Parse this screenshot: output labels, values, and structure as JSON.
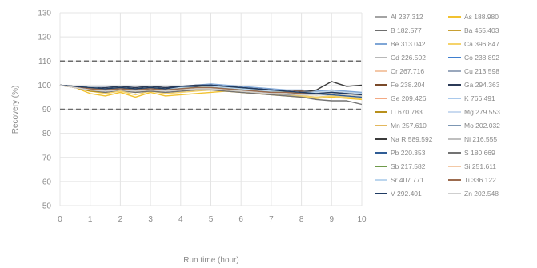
{
  "chart_data": {
    "type": "line",
    "title": "",
    "xlabel": "Run time (hour)",
    "ylabel": "Recovery (%)",
    "xlim": [
      0,
      10
    ],
    "ylim": [
      50,
      130
    ],
    "xticks": [
      "0",
      "1",
      "2",
      "3",
      "4",
      "5",
      "6",
      "7",
      "8",
      "9",
      "10"
    ],
    "yticks": [
      "50",
      "60",
      "70",
      "80",
      "90",
      "100",
      "110",
      "120",
      "130"
    ],
    "grid": true,
    "legend": "right",
    "limit_lines": [
      110,
      90
    ],
    "x": [
      0,
      0.5,
      1,
      1.5,
      2,
      2.5,
      3,
      3.5,
      4,
      4.5,
      5,
      5.5,
      6,
      6.5,
      7,
      7.5,
      8,
      8.5,
      9,
      9.5,
      10
    ],
    "series": [
      {
        "name": "Al 237.312",
        "color": "#a3a3a3",
        "values": [
          100,
          99.5,
          98.5,
          98.0,
          97.5,
          97.0,
          97.5,
          97.0,
          97.5,
          98.0,
          98.5,
          98.0,
          97.5,
          97.0,
          96.5,
          96.0,
          95.5,
          95.0,
          95.5,
          95.0,
          94.5
        ]
      },
      {
        "name": "As 188.980",
        "color": "#f2c230",
        "values": [
          100,
          99.0,
          96.5,
          95.5,
          97.0,
          95.0,
          97.0,
          95.5,
          96.0,
          96.5,
          97.0,
          97.5,
          97.0,
          96.5,
          96.0,
          95.5,
          95.0,
          94.5,
          95.0,
          94.5,
          94.0
        ]
      },
      {
        "name": "B 182.577",
        "color": "#6e6e6e",
        "values": [
          100,
          99.5,
          99.0,
          98.5,
          99.0,
          98.5,
          99.0,
          98.5,
          99.0,
          99.5,
          99.5,
          99.0,
          98.5,
          98.0,
          97.5,
          97.0,
          97.0,
          96.5,
          97.0,
          96.5,
          96.0
        ]
      },
      {
        "name": "Ba 455.403",
        "color": "#c8a033",
        "values": [
          100,
          99.0,
          98.5,
          98.0,
          98.5,
          98.0,
          98.5,
          98.0,
          98.5,
          98.5,
          99.0,
          98.5,
          98.0,
          97.5,
          97.0,
          97.0,
          97.5,
          97.0,
          97.5,
          97.0,
          96.5
        ]
      },
      {
        "name": "Be 313.042",
        "color": "#7fa6d6",
        "values": [
          100,
          99.5,
          99.0,
          99.0,
          99.5,
          99.0,
          99.5,
          99.0,
          99.5,
          100,
          100.5,
          100,
          99.5,
          99.0,
          98.5,
          98.0,
          98.0,
          97.5,
          98.0,
          97.5,
          97.0
        ]
      },
      {
        "name": "Ca 396.847",
        "color": "#f5d36b",
        "values": [
          100,
          99.0,
          97.5,
          96.5,
          97.5,
          96.0,
          97.5,
          96.5,
          97.0,
          97.5,
          98.0,
          97.5,
          97.0,
          96.5,
          96.0,
          95.5,
          95.5,
          95.0,
          95.5,
          95.0,
          94.5
        ]
      },
      {
        "name": "Cd 226.502",
        "color": "#b8b8b8",
        "values": [
          100,
          99.5,
          98.5,
          98.5,
          99.0,
          98.5,
          99.0,
          98.5,
          99.0,
          99.0,
          99.5,
          99.0,
          98.5,
          98.0,
          97.5,
          97.5,
          97.0,
          97.0,
          97.5,
          97.0,
          96.5
        ]
      },
      {
        "name": "Co 238.892",
        "color": "#3f7fcf",
        "values": [
          100,
          99.5,
          99.0,
          98.5,
          99.0,
          98.5,
          99.0,
          99.0,
          99.5,
          99.5,
          100,
          99.5,
          99.0,
          98.5,
          98.0,
          97.5,
          97.5,
          97.0,
          97.5,
          97.0,
          96.5
        ]
      },
      {
        "name": "Cr 267.716",
        "color": "#f4c8a8",
        "values": [
          100,
          99.0,
          98.0,
          97.5,
          98.0,
          97.5,
          98.0,
          97.5,
          98.0,
          98.5,
          98.5,
          98.0,
          97.5,
          97.0,
          96.5,
          96.5,
          96.0,
          96.0,
          96.5,
          96.0,
          95.5
        ]
      },
      {
        "name": "Cu 213.598",
        "color": "#9aa8bd",
        "values": [
          100,
          99.5,
          98.5,
          98.0,
          98.5,
          98.0,
          98.5,
          98.0,
          98.5,
          99.0,
          99.0,
          98.5,
          98.0,
          97.5,
          97.0,
          97.0,
          96.5,
          96.5,
          97.0,
          96.5,
          96.0
        ]
      },
      {
        "name": "Fe 238.204",
        "color": "#7a4a2a",
        "values": [
          100,
          99.5,
          99.0,
          98.5,
          99.0,
          99.0,
          99.5,
          99.0,
          99.5,
          99.5,
          100,
          99.5,
          99.0,
          98.5,
          98.0,
          97.5,
          97.5,
          97.0,
          97.5,
          97.0,
          96.5
        ]
      },
      {
        "name": "Ga 294.363",
        "color": "#2b3a57",
        "values": [
          100,
          99.5,
          99.0,
          99.0,
          99.5,
          99.0,
          99.5,
          99.0,
          99.5,
          100,
          100,
          99.5,
          99.0,
          98.5,
          98.0,
          97.5,
          97.0,
          96.5,
          97.0,
          96.5,
          96.0
        ]
      },
      {
        "name": "Ge 209.426",
        "color": "#f3a983",
        "values": [
          100,
          99.0,
          98.5,
          98.0,
          98.5,
          98.0,
          98.5,
          98.0,
          98.5,
          98.5,
          99.0,
          98.5,
          98.0,
          97.5,
          97.0,
          97.0,
          96.5,
          96.5,
          97.0,
          96.5,
          96.0
        ]
      },
      {
        "name": "K 766.491",
        "color": "#a9c9ec",
        "values": [
          100,
          99.5,
          99.0,
          98.5,
          99.0,
          98.5,
          99.0,
          98.5,
          99.0,
          99.0,
          99.5,
          99.0,
          98.5,
          98.0,
          97.5,
          97.5,
          97.0,
          97.0,
          97.5,
          97.0,
          96.5
        ]
      },
      {
        "name": "Li 670.783",
        "color": "#b8901c",
        "values": [
          100,
          99.0,
          97.5,
          97.0,
          98.0,
          97.0,
          98.0,
          97.5,
          98.0,
          98.5,
          98.5,
          98.0,
          97.5,
          97.0,
          96.5,
          96.5,
          96.0,
          96.0,
          96.5,
          96.0,
          95.5
        ]
      },
      {
        "name": "Mg 279.553",
        "color": "#c9daf0",
        "values": [
          100,
          99.5,
          99.0,
          98.5,
          99.0,
          98.5,
          99.0,
          98.5,
          99.0,
          99.5,
          99.5,
          99.0,
          98.5,
          98.0,
          97.5,
          97.5,
          97.0,
          97.0,
          97.5,
          97.0,
          96.5
        ]
      },
      {
        "name": "Mn 257.610",
        "color": "#e3b85e",
        "values": [
          100,
          99.0,
          98.5,
          98.0,
          98.5,
          98.0,
          98.5,
          98.0,
          98.5,
          98.5,
          99.0,
          98.5,
          98.0,
          97.5,
          97.0,
          97.0,
          96.5,
          96.5,
          97.0,
          96.5,
          96.0
        ]
      },
      {
        "name": "Mo 202.032",
        "color": "#7d97b3",
        "values": [
          100,
          99.5,
          98.5,
          98.0,
          98.5,
          98.0,
          98.5,
          98.0,
          98.5,
          99.0,
          99.0,
          98.5,
          98.0,
          97.5,
          97.0,
          97.0,
          96.5,
          96.5,
          97.0,
          96.5,
          96.0
        ]
      },
      {
        "name": "Na R 589.592",
        "color": "#3b3b3b",
        "values": [
          100,
          99.5,
          98.5,
          97.5,
          98.5,
          98.0,
          98.5,
          98.5,
          99.0,
          99.0,
          99.5,
          99.0,
          98.5,
          98.0,
          97.5,
          97.0,
          97.0,
          98.0,
          101.5,
          99.5,
          100.0
        ]
      },
      {
        "name": "Ni 216.555",
        "color": "#bfbfbf",
        "values": [
          100,
          99.5,
          99.0,
          98.5,
          99.0,
          98.5,
          99.0,
          98.5,
          99.0,
          99.5,
          99.5,
          99.0,
          98.5,
          98.0,
          97.5,
          97.5,
          97.0,
          97.0,
          97.5,
          97.0,
          96.5
        ]
      },
      {
        "name": "Pb 220.353",
        "color": "#2f5c95",
        "values": [
          100,
          99.5,
          99.0,
          98.5,
          99.0,
          98.5,
          99.0,
          98.5,
          99.0,
          99.0,
          99.5,
          99.0,
          98.5,
          98.0,
          97.5,
          97.0,
          96.5,
          96.0,
          96.0,
          95.5,
          95.0
        ]
      },
      {
        "name": "S 180.669",
        "color": "#737373",
        "values": [
          100,
          99.0,
          98.0,
          97.0,
          98.0,
          97.0,
          97.5,
          97.0,
          97.5,
          98.0,
          98.0,
          97.5,
          97.0,
          96.5,
          96.0,
          95.5,
          95.0,
          94.0,
          93.5,
          93.5,
          92.0
        ]
      },
      {
        "name": "Sb 217.582",
        "color": "#6f9a4a",
        "values": [
          100,
          99.5,
          99.0,
          98.5,
          99.0,
          98.5,
          99.0,
          98.5,
          99.0,
          99.0,
          99.5,
          99.0,
          98.5,
          98.0,
          97.5,
          97.0,
          96.5,
          96.0,
          96.5,
          96.0,
          95.5
        ]
      },
      {
        "name": "Si 251.611",
        "color": "#f3c9a6",
        "values": [
          100,
          99.0,
          98.0,
          97.5,
          98.0,
          97.5,
          98.0,
          97.5,
          98.0,
          98.5,
          98.5,
          98.0,
          97.5,
          97.0,
          96.5,
          96.5,
          96.0,
          96.0,
          96.5,
          96.0,
          95.5
        ]
      },
      {
        "name": "Sr 407.771",
        "color": "#bcd6ee",
        "values": [
          100,
          99.5,
          99.0,
          98.5,
          99.0,
          98.5,
          99.0,
          98.5,
          99.0,
          99.5,
          99.5,
          99.0,
          98.5,
          98.0,
          97.5,
          97.5,
          97.0,
          97.0,
          97.5,
          97.0,
          96.5
        ]
      },
      {
        "name": "Ti 336.122",
        "color": "#9c6b4e",
        "values": [
          100,
          99.5,
          98.5,
          98.0,
          98.5,
          98.0,
          98.5,
          98.0,
          98.5,
          99.0,
          99.0,
          98.5,
          98.0,
          97.5,
          97.0,
          97.0,
          96.5,
          96.5,
          97.0,
          96.5,
          96.0
        ]
      },
      {
        "name": "V 292.401",
        "color": "#1f3b63",
        "values": [
          100,
          99.5,
          99.0,
          98.5,
          99.0,
          98.5,
          99.0,
          98.5,
          99.5,
          99.5,
          100,
          99.5,
          99.0,
          98.5,
          98.0,
          97.5,
          97.0,
          96.5,
          97.0,
          96.5,
          96.0
        ]
      },
      {
        "name": "Zn 202.548",
        "color": "#cfcfcf",
        "values": [
          100,
          99.0,
          98.0,
          97.5,
          98.0,
          97.5,
          98.0,
          97.5,
          98.0,
          98.5,
          98.5,
          98.0,
          97.5,
          97.0,
          96.5,
          96.5,
          96.0,
          96.0,
          96.5,
          96.0,
          95.5
        ]
      }
    ]
  }
}
